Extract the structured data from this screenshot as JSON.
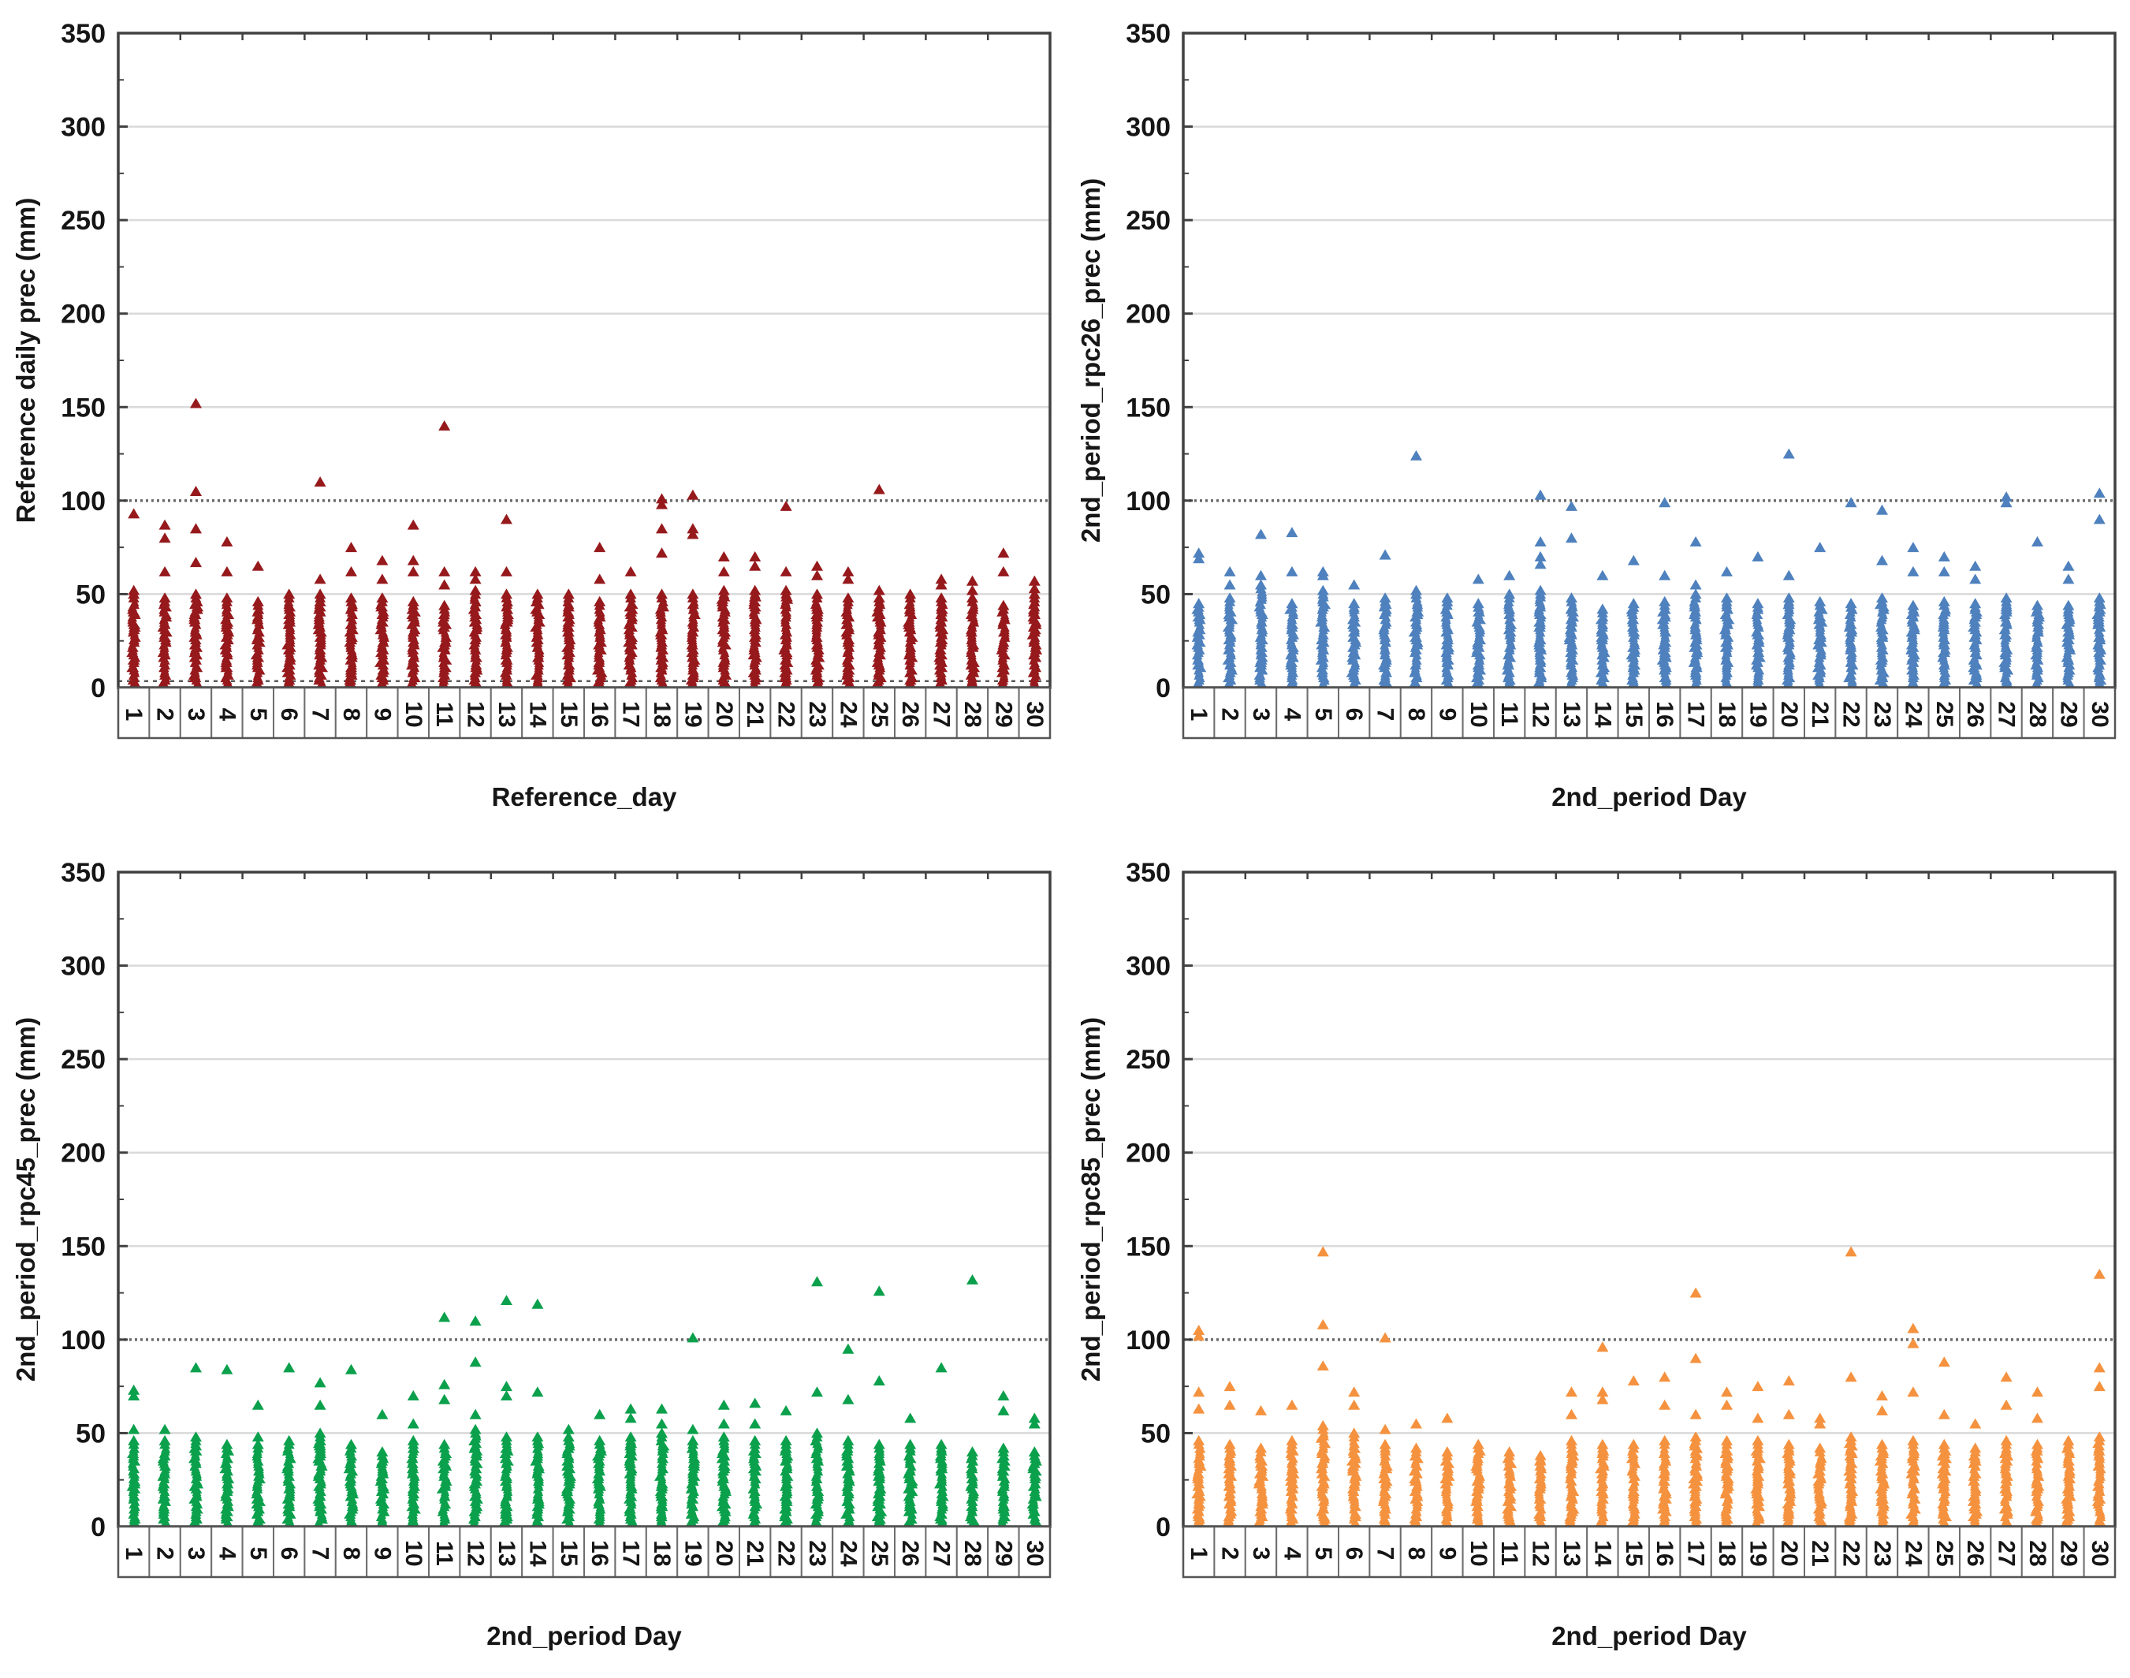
{
  "figure": {
    "description": "2x2 grid of daily precipitation scatter plots",
    "marker_shape": "triangle-up",
    "frame_color": "#404040",
    "grid_light_color": "#DADADA",
    "grid_dark_color": "#6B6B6B"
  },
  "chart_data": [
    {
      "type": "scatter",
      "ylabel": "Reference daily prec (mm)",
      "xlabel": "Reference_day",
      "marker_color": "#96191C",
      "ylim": [
        0,
        350
      ],
      "yticks": [
        0,
        50,
        100,
        150,
        200,
        250,
        300,
        350
      ],
      "grid": {
        "light_lines": [
          50,
          150,
          200,
          250,
          300
        ],
        "dark_dotted_line": 100,
        "extra_dashed_line": 3.5
      },
      "legend": "none",
      "categories": [
        "1",
        "2",
        "3",
        "4",
        "5",
        "6",
        "7",
        "8",
        "9",
        "10",
        "11",
        "12",
        "13",
        "14",
        "15",
        "16",
        "17",
        "18",
        "19",
        "20",
        "21",
        "22",
        "23",
        "24",
        "25",
        "26",
        "27",
        "28",
        "29",
        "30"
      ],
      "columns": [
        {
          "day": 1,
          "top": 50,
          "out": [
            93,
            52
          ]
        },
        {
          "day": 2,
          "top": 48,
          "out": [
            87,
            80,
            62
          ]
        },
        {
          "day": 3,
          "top": 50,
          "out": [
            152,
            105,
            85,
            67
          ]
        },
        {
          "day": 4,
          "top": 48,
          "out": [
            78,
            62
          ]
        },
        {
          "day": 5,
          "top": 46,
          "out": [
            65
          ]
        },
        {
          "day": 6,
          "top": 50,
          "out": []
        },
        {
          "day": 7,
          "top": 50,
          "out": [
            110,
            58
          ]
        },
        {
          "day": 8,
          "top": 48,
          "out": [
            75,
            62
          ]
        },
        {
          "day": 9,
          "top": 48,
          "out": [
            68,
            58
          ]
        },
        {
          "day": 10,
          "top": 46,
          "out": [
            87,
            68,
            62
          ]
        },
        {
          "day": 11,
          "top": 44,
          "out": [
            140,
            62,
            55
          ]
        },
        {
          "day": 12,
          "top": 52,
          "out": [
            62,
            58
          ]
        },
        {
          "day": 13,
          "top": 50,
          "out": [
            90,
            62
          ]
        },
        {
          "day": 14,
          "top": 50,
          "out": []
        },
        {
          "day": 15,
          "top": 50,
          "out": []
        },
        {
          "day": 16,
          "top": 46,
          "out": [
            75,
            58
          ]
        },
        {
          "day": 17,
          "top": 50,
          "out": [
            62
          ]
        },
        {
          "day": 18,
          "top": 50,
          "out": [
            101,
            98,
            85,
            72
          ]
        },
        {
          "day": 19,
          "top": 50,
          "out": [
            103,
            85,
            82
          ]
        },
        {
          "day": 20,
          "top": 52,
          "out": [
            70,
            62
          ]
        },
        {
          "day": 21,
          "top": 52,
          "out": [
            70,
            65
          ]
        },
        {
          "day": 22,
          "top": 52,
          "out": [
            97,
            62
          ]
        },
        {
          "day": 23,
          "top": 50,
          "out": [
            65,
            60
          ]
        },
        {
          "day": 24,
          "top": 48,
          "out": [
            62,
            58
          ]
        },
        {
          "day": 25,
          "top": 48,
          "out": [
            106,
            52
          ]
        },
        {
          "day": 26,
          "top": 50,
          "out": []
        },
        {
          "day": 27,
          "top": 48,
          "out": [
            58,
            55
          ]
        },
        {
          "day": 28,
          "top": 48,
          "out": [
            57,
            52
          ]
        },
        {
          "day": 29,
          "top": 44,
          "out": [
            72,
            62
          ]
        },
        {
          "day": 30,
          "top": 50,
          "out": [
            57,
            53
          ]
        }
      ]
    },
    {
      "type": "scatter",
      "ylabel": "2nd_period_rpc26_prec (mm)",
      "xlabel": "2nd_period Day",
      "marker_color": "#4E81BD",
      "ylim": [
        0,
        350
      ],
      "yticks": [
        0,
        50,
        100,
        150,
        200,
        250,
        300,
        350
      ],
      "grid": {
        "light_lines": [
          50,
          150,
          200,
          250,
          300
        ],
        "dark_dotted_line": 100
      },
      "legend": "none",
      "categories": [
        "1",
        "2",
        "3",
        "4",
        "5",
        "6",
        "7",
        "8",
        "9",
        "10",
        "11",
        "12",
        "13",
        "14",
        "15",
        "16",
        "17",
        "18",
        "19",
        "20",
        "21",
        "22",
        "23",
        "24",
        "25",
        "26",
        "27",
        "28",
        "29",
        "30"
      ],
      "columns": [
        {
          "day": 1,
          "top": 45,
          "out": [
            72,
            69
          ]
        },
        {
          "day": 2,
          "top": 48,
          "out": [
            62,
            55
          ]
        },
        {
          "day": 3,
          "top": 55,
          "out": [
            82,
            60
          ]
        },
        {
          "day": 4,
          "top": 45,
          "out": [
            83,
            62
          ]
        },
        {
          "day": 5,
          "top": 52,
          "out": [
            62,
            60
          ]
        },
        {
          "day": 6,
          "top": 45,
          "out": [
            55
          ]
        },
        {
          "day": 7,
          "top": 48,
          "out": [
            71
          ]
        },
        {
          "day": 8,
          "top": 50,
          "out": [
            124,
            52
          ]
        },
        {
          "day": 9,
          "top": 46,
          "out": [
            48
          ]
        },
        {
          "day": 10,
          "top": 45,
          "out": [
            58
          ]
        },
        {
          "day": 11,
          "top": 50,
          "out": [
            60
          ]
        },
        {
          "day": 12,
          "top": 52,
          "out": [
            103,
            78,
            70,
            66
          ]
        },
        {
          "day": 13,
          "top": 48,
          "out": [
            97,
            80
          ]
        },
        {
          "day": 14,
          "top": 42,
          "out": [
            60
          ]
        },
        {
          "day": 15,
          "top": 45,
          "out": [
            68
          ]
        },
        {
          "day": 16,
          "top": 46,
          "out": [
            99,
            60
          ]
        },
        {
          "day": 17,
          "top": 50,
          "out": [
            78,
            55
          ]
        },
        {
          "day": 18,
          "top": 48,
          "out": [
            62
          ]
        },
        {
          "day": 19,
          "top": 45,
          "out": [
            70
          ]
        },
        {
          "day": 20,
          "top": 48,
          "out": [
            125,
            60
          ]
        },
        {
          "day": 21,
          "top": 46,
          "out": [
            75
          ]
        },
        {
          "day": 22,
          "top": 45,
          "out": [
            99
          ]
        },
        {
          "day": 23,
          "top": 48,
          "out": [
            95,
            68
          ]
        },
        {
          "day": 24,
          "top": 44,
          "out": [
            75,
            62
          ]
        },
        {
          "day": 25,
          "top": 46,
          "out": [
            70,
            62
          ]
        },
        {
          "day": 26,
          "top": 45,
          "out": [
            65,
            58
          ]
        },
        {
          "day": 27,
          "top": 48,
          "out": [
            102,
            99
          ]
        },
        {
          "day": 28,
          "top": 44,
          "out": [
            78
          ]
        },
        {
          "day": 29,
          "top": 44,
          "out": [
            65,
            58
          ]
        },
        {
          "day": 30,
          "top": 48,
          "out": [
            104,
            90
          ]
        }
      ]
    },
    {
      "type": "scatter",
      "ylabel": "2nd_period_rpc45_prec (mm)",
      "xlabel": "2nd_period Day",
      "marker_color": "#0BA04C",
      "ylim": [
        0,
        350
      ],
      "yticks": [
        0,
        50,
        100,
        150,
        200,
        250,
        300,
        350
      ],
      "grid": {
        "light_lines": [
          50,
          150,
          200,
          250,
          300
        ],
        "dark_dotted_line": 100
      },
      "legend": "none",
      "categories": [
        "1",
        "2",
        "3",
        "4",
        "5",
        "6",
        "7",
        "8",
        "9",
        "10",
        "11",
        "12",
        "13",
        "14",
        "15",
        "16",
        "17",
        "18",
        "19",
        "20",
        "21",
        "22",
        "23",
        "24",
        "25",
        "26",
        "27",
        "28",
        "29",
        "30"
      ],
      "columns": [
        {
          "day": 1,
          "top": 46,
          "out": [
            73,
            70,
            52
          ]
        },
        {
          "day": 2,
          "top": 46,
          "out": [
            52
          ]
        },
        {
          "day": 3,
          "top": 48,
          "out": [
            85
          ]
        },
        {
          "day": 4,
          "top": 44,
          "out": [
            84
          ]
        },
        {
          "day": 5,
          "top": 44,
          "out": [
            65,
            48
          ]
        },
        {
          "day": 6,
          "top": 46,
          "out": [
            85
          ]
        },
        {
          "day": 7,
          "top": 50,
          "out": [
            77,
            65
          ]
        },
        {
          "day": 8,
          "top": 44,
          "out": [
            84
          ]
        },
        {
          "day": 9,
          "top": 40,
          "out": [
            60
          ]
        },
        {
          "day": 10,
          "top": 46,
          "out": [
            70,
            55
          ]
        },
        {
          "day": 11,
          "top": 44,
          "out": [
            112,
            76,
            68
          ]
        },
        {
          "day": 12,
          "top": 52,
          "out": [
            110,
            88,
            60
          ]
        },
        {
          "day": 13,
          "top": 48,
          "out": [
            121,
            75,
            70
          ]
        },
        {
          "day": 14,
          "top": 48,
          "out": [
            119,
            72
          ]
        },
        {
          "day": 15,
          "top": 48,
          "out": [
            52
          ]
        },
        {
          "day": 16,
          "top": 46,
          "out": [
            60
          ]
        },
        {
          "day": 17,
          "top": 48,
          "out": [
            63,
            58
          ]
        },
        {
          "day": 18,
          "top": 50,
          "out": [
            63,
            55
          ]
        },
        {
          "day": 19,
          "top": 46,
          "out": [
            101,
            52
          ]
        },
        {
          "day": 20,
          "top": 48,
          "out": [
            65,
            55
          ]
        },
        {
          "day": 21,
          "top": 46,
          "out": [
            66,
            55
          ]
        },
        {
          "day": 22,
          "top": 46,
          "out": [
            62
          ]
        },
        {
          "day": 23,
          "top": 50,
          "out": [
            131,
            72
          ]
        },
        {
          "day": 24,
          "top": 46,
          "out": [
            95,
            68
          ]
        },
        {
          "day": 25,
          "top": 44,
          "out": [
            126,
            78
          ]
        },
        {
          "day": 26,
          "top": 44,
          "out": [
            58
          ]
        },
        {
          "day": 27,
          "top": 44,
          "out": [
            85
          ]
        },
        {
          "day": 28,
          "top": 40,
          "out": [
            132
          ]
        },
        {
          "day": 29,
          "top": 42,
          "out": [
            70,
            62
          ]
        },
        {
          "day": 30,
          "top": 40,
          "out": [
            58,
            55
          ]
        }
      ]
    },
    {
      "type": "scatter",
      "ylabel": "2nd_period_rpc85_prec (mm)",
      "xlabel": "2nd_period Day",
      "marker_color": "#F5923F",
      "ylim": [
        0,
        350
      ],
      "yticks": [
        0,
        50,
        100,
        150,
        200,
        250,
        300,
        350
      ],
      "grid": {
        "light_lines": [
          50,
          150,
          200,
          250,
          300
        ],
        "dark_dotted_line": 100
      },
      "legend": "none",
      "categories": [
        "1",
        "2",
        "3",
        "4",
        "5",
        "6",
        "7",
        "8",
        "9",
        "10",
        "11",
        "12",
        "13",
        "14",
        "15",
        "16",
        "17",
        "18",
        "19",
        "20",
        "21",
        "22",
        "23",
        "24",
        "25",
        "26",
        "27",
        "28",
        "29",
        "30"
      ],
      "columns": [
        {
          "day": 1,
          "top": 46,
          "out": [
            105,
            102,
            72,
            63
          ]
        },
        {
          "day": 2,
          "top": 44,
          "out": [
            75,
            65
          ]
        },
        {
          "day": 3,
          "top": 42,
          "out": [
            62
          ]
        },
        {
          "day": 4,
          "top": 46,
          "out": [
            65
          ]
        },
        {
          "day": 5,
          "top": 54,
          "out": [
            147,
            108,
            86
          ]
        },
        {
          "day": 6,
          "top": 50,
          "out": [
            72,
            65
          ]
        },
        {
          "day": 7,
          "top": 44,
          "out": [
            101,
            52
          ]
        },
        {
          "day": 8,
          "top": 42,
          "out": [
            55
          ]
        },
        {
          "day": 9,
          "top": 40,
          "out": [
            58
          ]
        },
        {
          "day": 10,
          "top": 44,
          "out": []
        },
        {
          "day": 11,
          "top": 40,
          "out": []
        },
        {
          "day": 12,
          "top": 38,
          "out": []
        },
        {
          "day": 13,
          "top": 46,
          "out": [
            72,
            60
          ]
        },
        {
          "day": 14,
          "top": 44,
          "out": [
            96,
            72,
            68
          ]
        },
        {
          "day": 15,
          "top": 44,
          "out": [
            78
          ]
        },
        {
          "day": 16,
          "top": 46,
          "out": [
            80,
            65
          ]
        },
        {
          "day": 17,
          "top": 48,
          "out": [
            125,
            90,
            60
          ]
        },
        {
          "day": 18,
          "top": 46,
          "out": [
            72,
            65
          ]
        },
        {
          "day": 19,
          "top": 46,
          "out": [
            75,
            58
          ]
        },
        {
          "day": 20,
          "top": 44,
          "out": [
            78,
            60
          ]
        },
        {
          "day": 21,
          "top": 42,
          "out": [
            58,
            55
          ]
        },
        {
          "day": 22,
          "top": 48,
          "out": [
            147,
            80
          ]
        },
        {
          "day": 23,
          "top": 44,
          "out": [
            70,
            62
          ]
        },
        {
          "day": 24,
          "top": 46,
          "out": [
            106,
            98,
            72
          ]
        },
        {
          "day": 25,
          "top": 44,
          "out": [
            88,
            60
          ]
        },
        {
          "day": 26,
          "top": 42,
          "out": [
            55
          ]
        },
        {
          "day": 27,
          "top": 46,
          "out": [
            80,
            65
          ]
        },
        {
          "day": 28,
          "top": 44,
          "out": [
            72,
            58
          ]
        },
        {
          "day": 29,
          "top": 46,
          "out": []
        },
        {
          "day": 30,
          "top": 48,
          "out": [
            135,
            85,
            75
          ]
        }
      ]
    }
  ]
}
